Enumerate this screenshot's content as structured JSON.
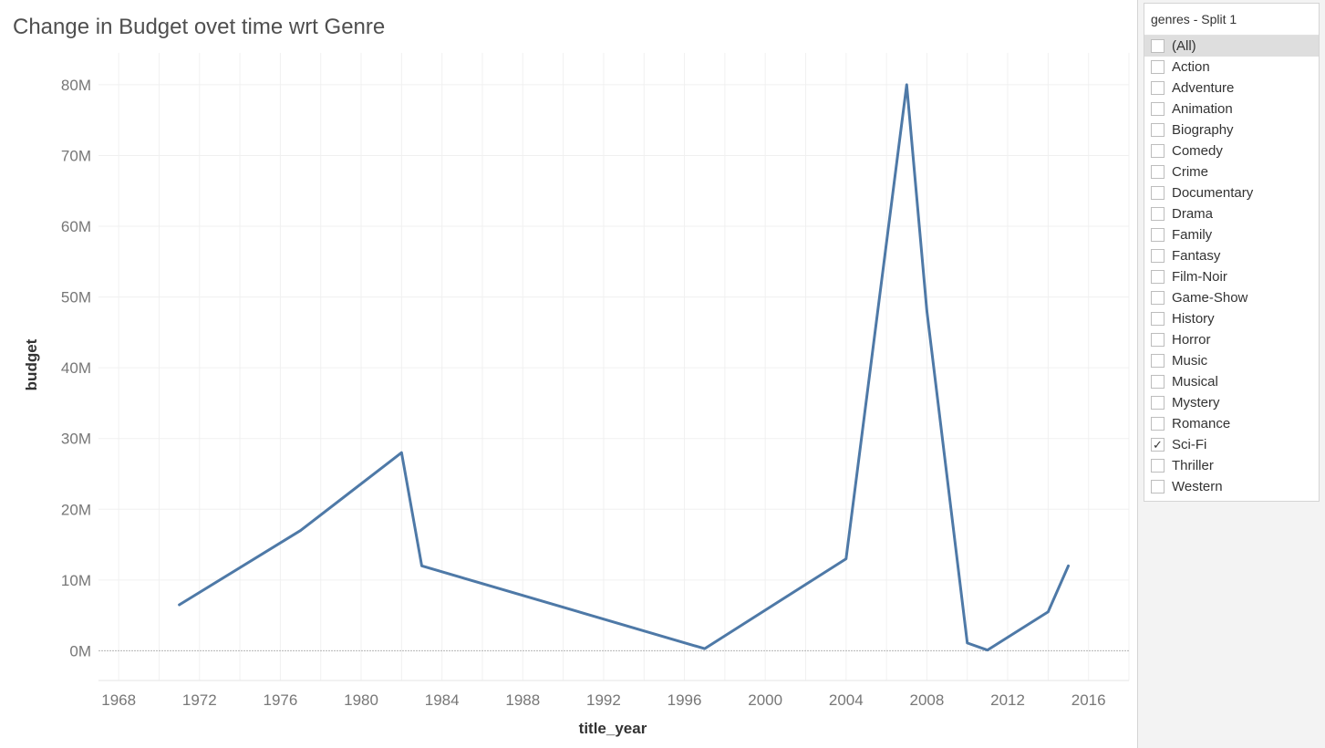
{
  "sheet": {
    "title": "Change in Budget ovet time wrt Genre"
  },
  "chart_data": {
    "type": "line",
    "title": "Change in Budget ovet time wrt Genre",
    "xlabel": "title_year",
    "ylabel": "budget",
    "xlim": [
      1967,
      2018
    ],
    "ylim": [
      -4200000,
      84500000
    ],
    "x_ticks": [
      1968,
      1972,
      1976,
      1980,
      1984,
      1988,
      1992,
      1996,
      2000,
      2004,
      2008,
      2012,
      2016
    ],
    "y_ticks": [
      0,
      10000000,
      20000000,
      30000000,
      40000000,
      50000000,
      60000000,
      70000000,
      80000000
    ],
    "y_tick_labels": [
      "0M",
      "10M",
      "20M",
      "30M",
      "40M",
      "50M",
      "60M",
      "70M",
      "80M"
    ],
    "grid": true,
    "line_color": "#4e79a7",
    "series": [
      {
        "x": [
          1971,
          1977,
          1982,
          1983,
          1997,
          2004,
          2007,
          2008,
          2010,
          2011,
          2014,
          2015
        ],
        "values": [
          6500000,
          17000000,
          28000000,
          12000000,
          300000,
          13000000,
          80000000,
          48000000,
          1100000,
          100000,
          5500000,
          12000000
        ]
      }
    ]
  },
  "filter": {
    "title": "genres - Split 1",
    "items": [
      {
        "label": "(All)",
        "checked": false
      },
      {
        "label": "Action",
        "checked": false
      },
      {
        "label": "Adventure",
        "checked": false
      },
      {
        "label": "Animation",
        "checked": false
      },
      {
        "label": "Biography",
        "checked": false
      },
      {
        "label": "Comedy",
        "checked": false
      },
      {
        "label": "Crime",
        "checked": false
      },
      {
        "label": "Documentary",
        "checked": false
      },
      {
        "label": "Drama",
        "checked": false
      },
      {
        "label": "Family",
        "checked": false
      },
      {
        "label": "Fantasy",
        "checked": false
      },
      {
        "label": "Film-Noir",
        "checked": false
      },
      {
        "label": "Game-Show",
        "checked": false
      },
      {
        "label": "History",
        "checked": false
      },
      {
        "label": "Horror",
        "checked": false
      },
      {
        "label": "Music",
        "checked": false
      },
      {
        "label": "Musical",
        "checked": false
      },
      {
        "label": "Mystery",
        "checked": false
      },
      {
        "label": "Romance",
        "checked": false
      },
      {
        "label": "Sci-Fi",
        "checked": true
      },
      {
        "label": "Thriller",
        "checked": false
      },
      {
        "label": "Western",
        "checked": false
      }
    ]
  }
}
